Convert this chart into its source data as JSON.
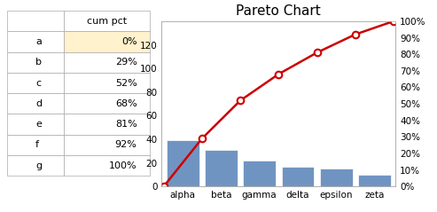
{
  "categories": [
    "alpha",
    "beta",
    "gamma",
    "delta",
    "epsilon",
    "zeta"
  ],
  "bar_values": [
    39,
    31,
    22,
    17,
    15,
    10
  ],
  "cum_pct": [
    0,
    29,
    52,
    68,
    81,
    92,
    100
  ],
  "bar_color": "#7094C1",
  "bar_edge_color": "#FFFFFF",
  "line_color": "#CC0000",
  "marker_color": "#CC0000",
  "marker_face": "#FFFFFF",
  "title": "Pareto Chart",
  "title_fontsize": 11,
  "ylim_left": [
    0,
    140
  ],
  "ylim_right": [
    0,
    100
  ],
  "yticks_left": [
    0,
    20,
    40,
    60,
    80,
    100,
    120
  ],
  "yticks_right": [
    0,
    10,
    20,
    30,
    40,
    50,
    60,
    70,
    80,
    90,
    100
  ],
  "ytick_labels_right": [
    "0%",
    "10%",
    "20%",
    "30%",
    "40%",
    "50%",
    "60%",
    "70%",
    "80%",
    "90%",
    "100%"
  ],
  "background_color": "#FFFFFF",
  "plot_bg_color": "#FFFFFF",
  "table_labels": [
    "a",
    "b",
    "c",
    "d",
    "e",
    "f",
    "g"
  ],
  "table_cum_pct": [
    "0%",
    "29%",
    "52%",
    "68%",
    "81%",
    "92%",
    "100%"
  ],
  "highlight_color": "#FFF2CC",
  "table_font_size": 8,
  "axis_font_size": 7.5
}
